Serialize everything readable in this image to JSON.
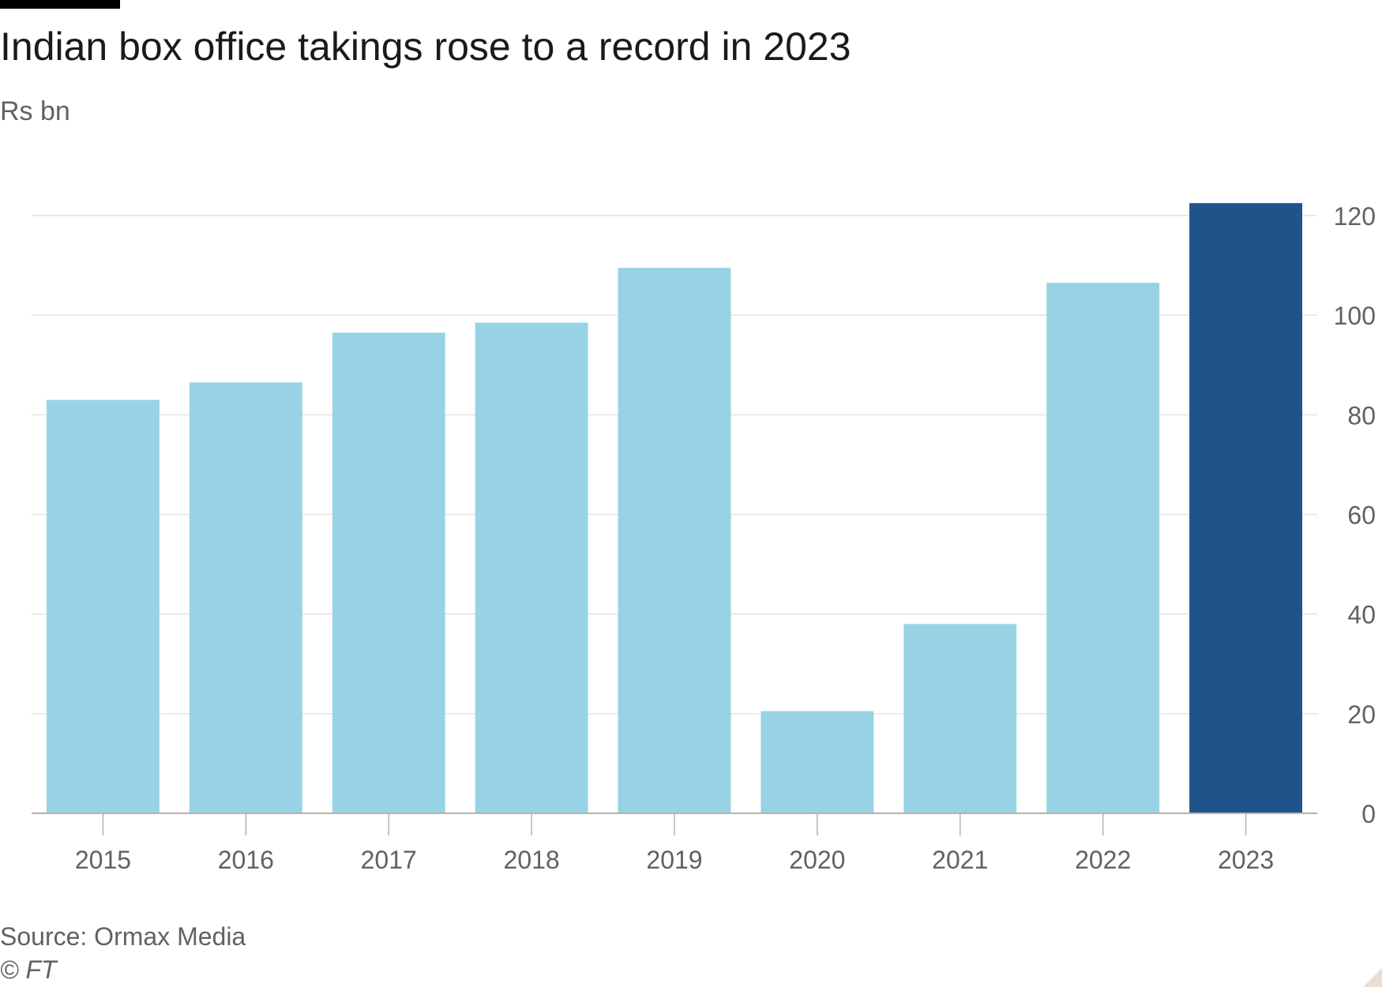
{
  "header": {
    "title": "Indian box office takings rose to a record in 2023",
    "subtitle": "Rs bn"
  },
  "footer": {
    "source": "Source: Ormax Media",
    "copyright": "© FT"
  },
  "colors": {
    "bar": "#97d3e5",
    "highlight": "#20538a",
    "grid": "#e8e3dc",
    "axis": "#b8b2ac",
    "tick_text": "#66605c"
  },
  "chart_data": {
    "type": "bar",
    "title": "Indian box office takings rose to a record in 2023",
    "subtitle": "Rs bn",
    "categories": [
      "2015",
      "2016",
      "2017",
      "2018",
      "2019",
      "2020",
      "2021",
      "2022",
      "2023"
    ],
    "values": [
      83,
      86.5,
      96.5,
      98.5,
      109.5,
      20.5,
      38,
      106.5,
      122.5
    ],
    "highlight_category": "2023",
    "ylim": [
      0,
      120
    ],
    "yticks": [
      0,
      20,
      40,
      60,
      80,
      100,
      120
    ],
    "y_axis_side": "right",
    "grid": true,
    "source": "Source: Ormax Media"
  }
}
